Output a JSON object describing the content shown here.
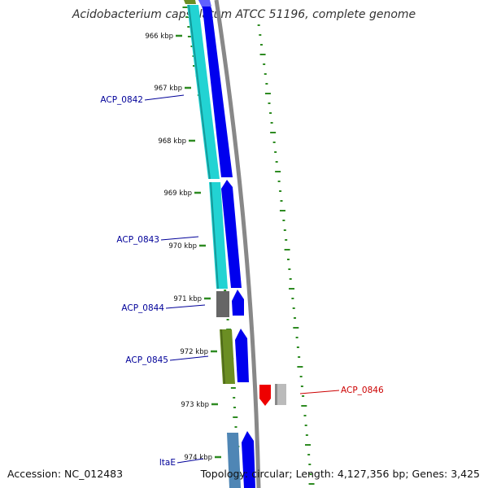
{
  "title": "Acidobacterium capsulatum ATCC 51196, complete genome",
  "footer": {
    "accession": "Accession: NC_012483",
    "stats": "Topology: circular; Length: 4,127,356 bp; Genes: 3,425"
  },
  "ticks": [
    "966 kbp",
    "967 kbp",
    "968 kbp",
    "969 kbp",
    "970 kbp",
    "971 kbp",
    "972 kbp",
    "973 kbp",
    "974 kbp"
  ],
  "genes": [
    {
      "label": "ACP_0842",
      "color": "#000099"
    },
    {
      "label": "ACP_0843",
      "color": "#000099"
    },
    {
      "label": "ACP_0844",
      "color": "#000099"
    },
    {
      "label": "ACP_0845",
      "color": "#000099"
    },
    {
      "label": "ACP_0846",
      "color": "#cc0000"
    },
    {
      "label": "ltaE",
      "color": "#000099"
    }
  ],
  "colors": {
    "cds_blue": "#0000ee",
    "cyan": "#22d3d3",
    "olive": "#6b8e23",
    "dark_gray": "#666666",
    "steel_blue": "#4f86b5",
    "reverse_red": "#ee0000",
    "light_gray": "#bbbbbb",
    "backbone": "#888888",
    "gc_dots": "#2e8b22"
  }
}
